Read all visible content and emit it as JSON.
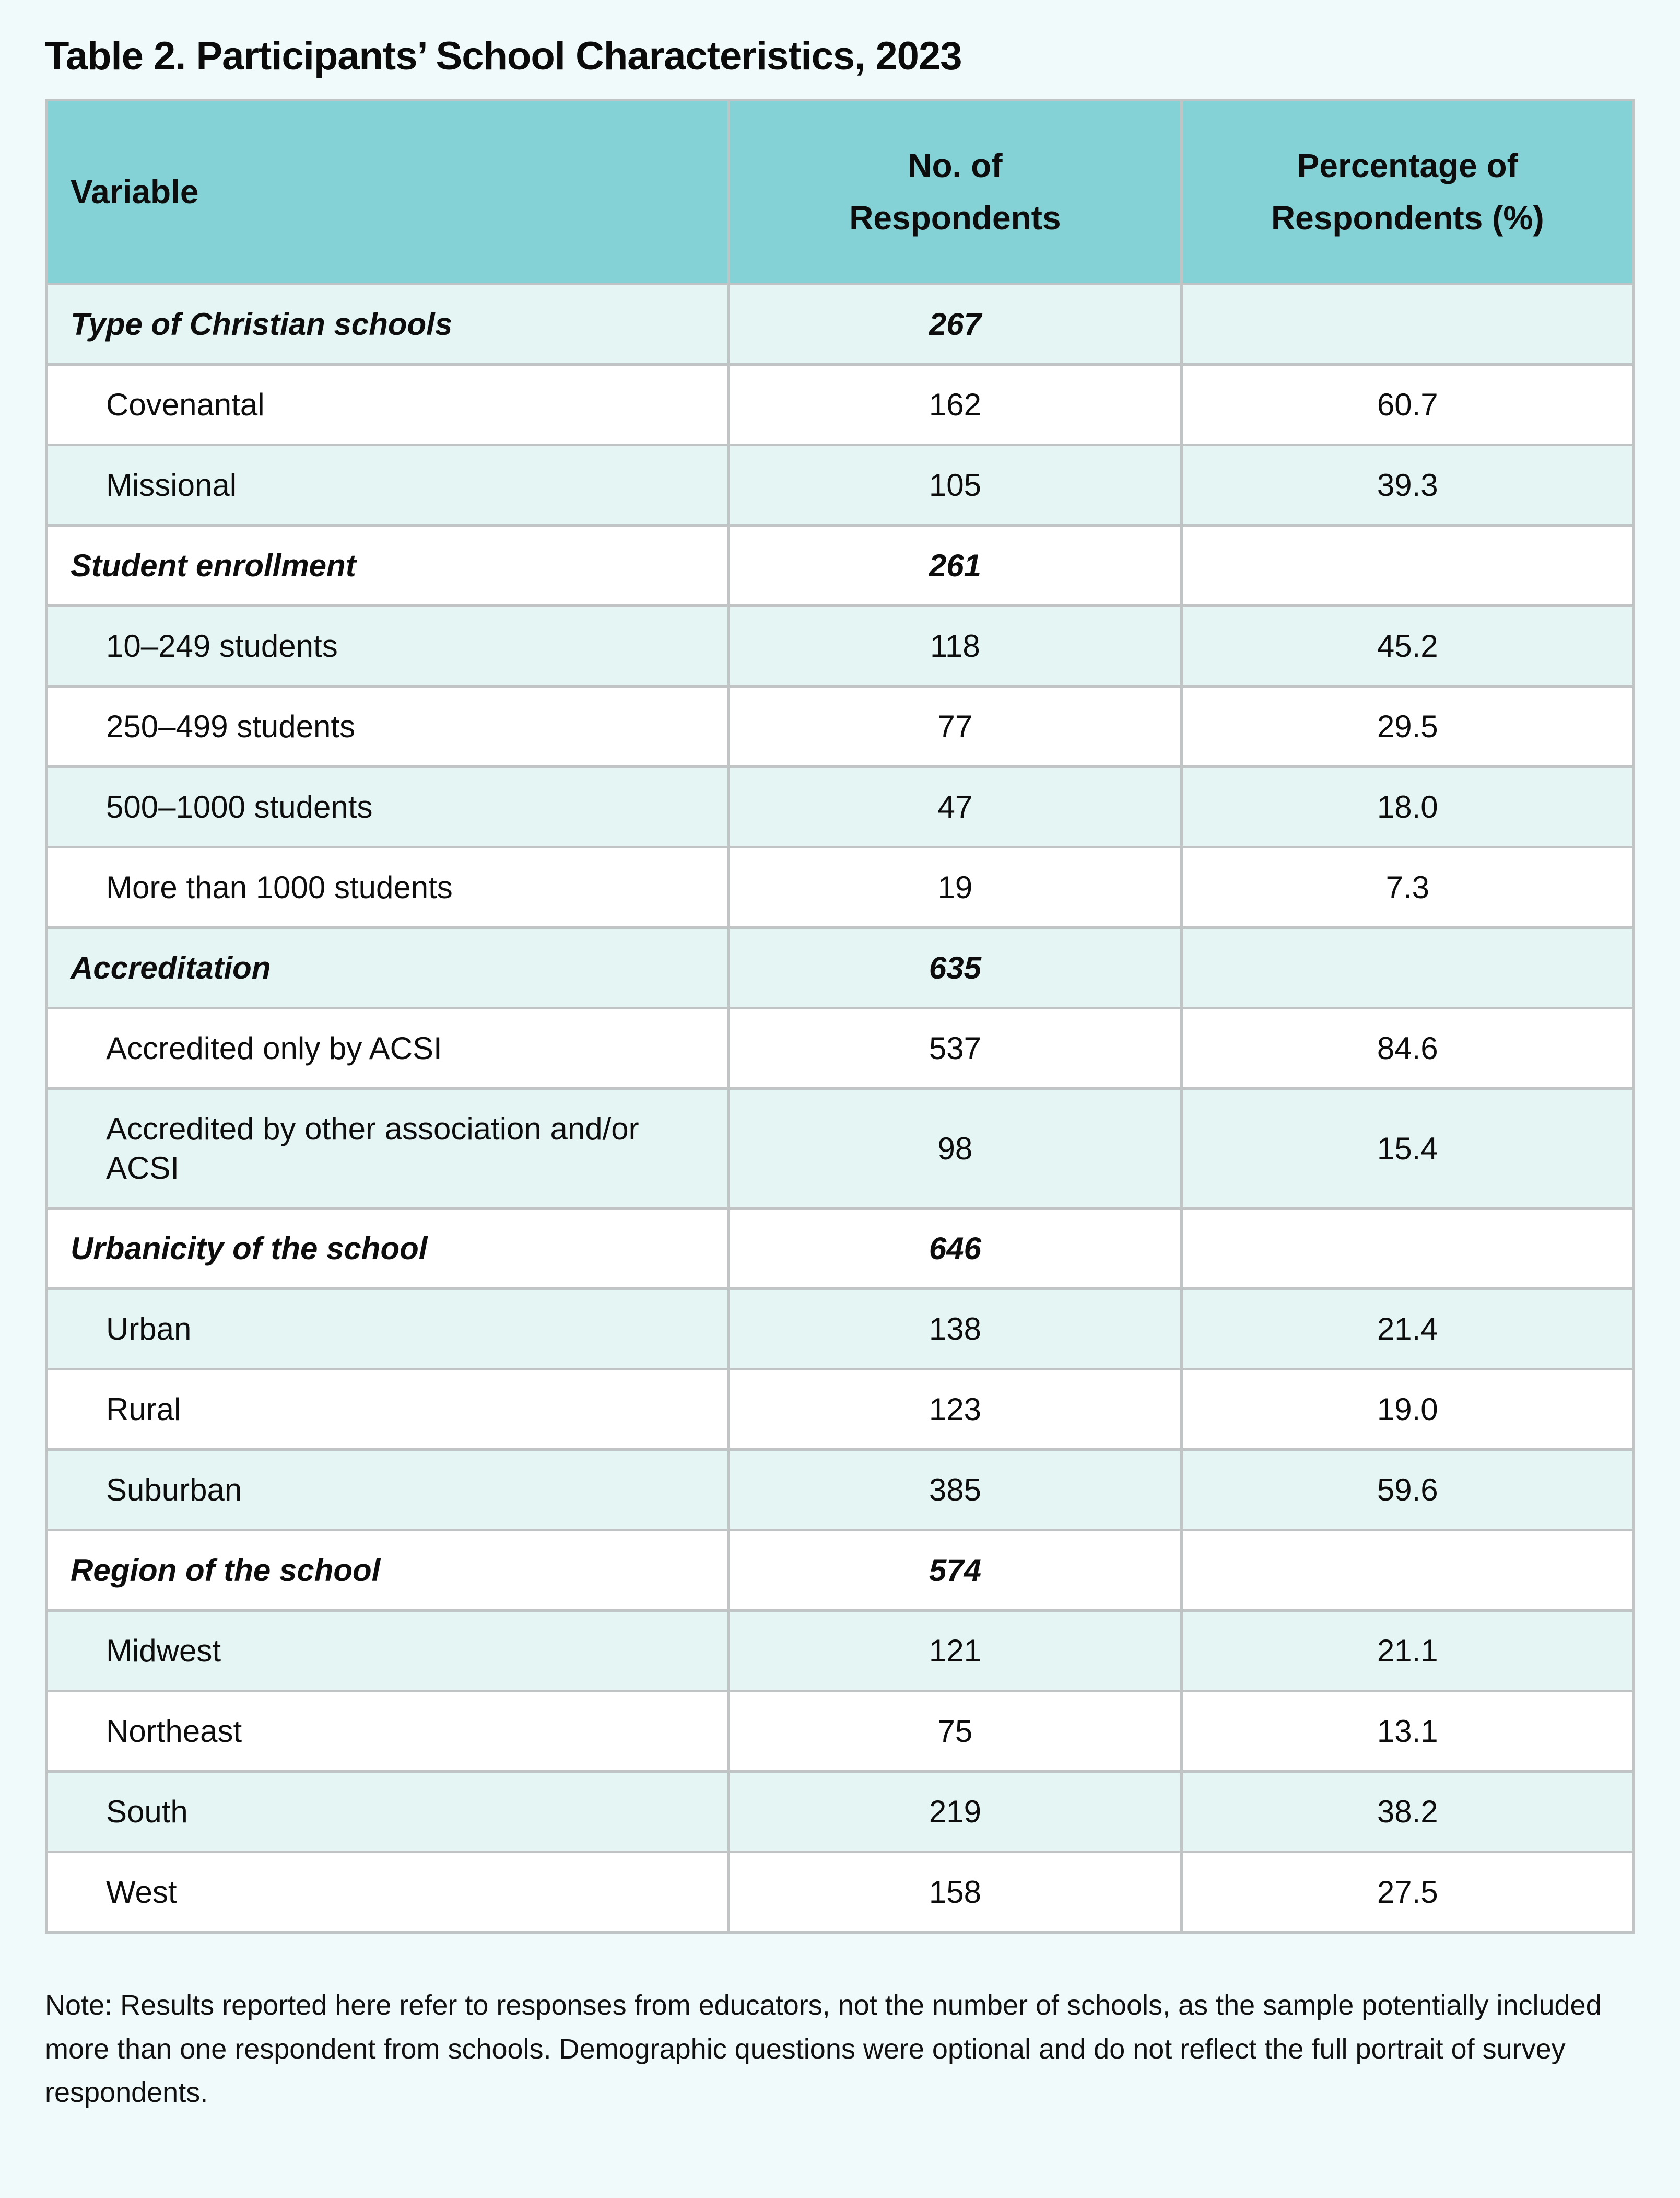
{
  "page": {
    "title": "Table 2. Participants’ School Characteristics, 2023",
    "note": "Note: Results reported here refer to responses from educators, not the number of schools, as the sample potentially included more than one respondent from schools. Demographic questions were optional and do not reflect the full portrait of survey respondents."
  },
  "table": {
    "headers": {
      "variable": "Variable",
      "respondents": "No. of\nRespondents",
      "percentage": "Percentage of\nRespondents (%)"
    },
    "rows": [
      {
        "variable": "Type of Christian schools",
        "n": "267",
        "pct": "",
        "category": true
      },
      {
        "variable": "Covenantal",
        "n": "162",
        "pct": "60.7",
        "category": false
      },
      {
        "variable": "Missional",
        "n": "105",
        "pct": "39.3",
        "category": false
      },
      {
        "variable": "Student enrollment",
        "n": "261",
        "pct": "",
        "category": true
      },
      {
        "variable": "10–249 students",
        "n": "118",
        "pct": "45.2",
        "category": false
      },
      {
        "variable": "250–499 students",
        "n": "77",
        "pct": "29.5",
        "category": false
      },
      {
        "variable": "500–1000 students",
        "n": "47",
        "pct": "18.0",
        "category": false
      },
      {
        "variable": "More than 1000 students",
        "n": "19",
        "pct": "7.3",
        "category": false
      },
      {
        "variable": "Accreditation",
        "n": "635",
        "pct": "",
        "category": true
      },
      {
        "variable": "Accredited only by ACSI",
        "n": "537",
        "pct": "84.6",
        "category": false
      },
      {
        "variable": "Accredited by other association and/or ACSI",
        "n": "98",
        "pct": "15.4",
        "category": false
      },
      {
        "variable": "Urbanicity of the school",
        "n": "646",
        "pct": "",
        "category": true
      },
      {
        "variable": "Urban",
        "n": "138",
        "pct": "21.4",
        "category": false
      },
      {
        "variable": "Rural",
        "n": "123",
        "pct": "19.0",
        "category": false
      },
      {
        "variable": "Suburban",
        "n": "385",
        "pct": "59.6",
        "category": false
      },
      {
        "variable": "Region of the school",
        "n": "574",
        "pct": "",
        "category": true
      },
      {
        "variable": "Midwest",
        "n": "121",
        "pct": "21.1",
        "category": false
      },
      {
        "variable": "Northeast",
        "n": "75",
        "pct": "13.1",
        "category": false
      },
      {
        "variable": "South",
        "n": "219",
        "pct": "38.2",
        "category": false
      },
      {
        "variable": "West",
        "n": "158",
        "pct": "27.5",
        "category": false
      }
    ]
  },
  "colors": {
    "page_bg": "#f1fafa",
    "header_bg": "#85d2d6",
    "stripe_bg": "#e4f5f4",
    "row_bg": "#ffffff",
    "border": "#c0c4c5",
    "text": "#0d0d0d"
  }
}
